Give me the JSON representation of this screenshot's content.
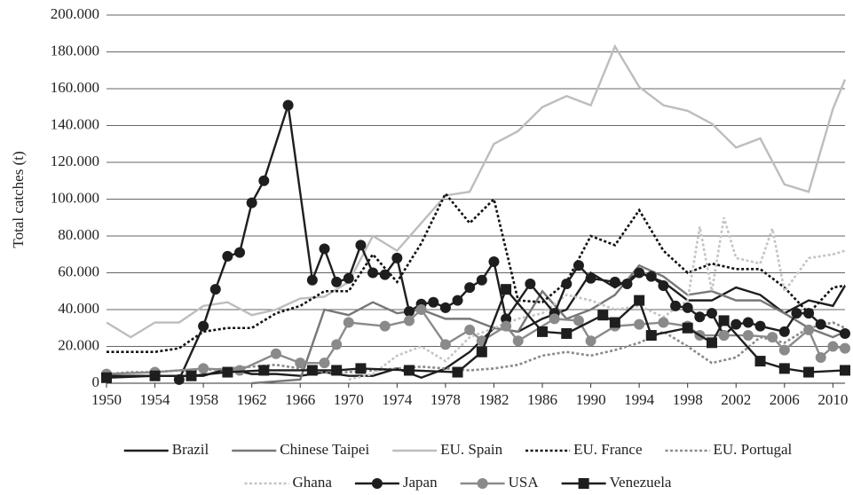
{
  "chart_data": {
    "type": "line",
    "y_label": "Total catches (t)",
    "xlim": [
      1950,
      2011
    ],
    "xticks": [
      1950,
      1954,
      1958,
      1962,
      1966,
      1970,
      1974,
      1978,
      1982,
      1986,
      1990,
      1994,
      1998,
      2002,
      2006,
      2010
    ],
    "ylim": [
      0,
      200000
    ],
    "yticks": [
      0,
      {
        "value": 20000,
        "label": "20.000"
      },
      {
        "value": 40000,
        "label": "40.000"
      },
      {
        "value": 60000,
        "label": "60.000"
      },
      {
        "value": 80000,
        "label": "80.000"
      },
      {
        "value": 100000,
        "label": "100.000"
      },
      {
        "value": 120000,
        "label": "120.000"
      },
      {
        "value": 140000,
        "label": "140.000"
      },
      {
        "value": 160000,
        "label": "160.000"
      },
      {
        "value": 180000,
        "label": "180.000"
      },
      {
        "value": 200000,
        "label": "200.000"
      }
    ],
    "grid": true,
    "series": [
      {
        "name": "Brazil",
        "color": "#1e1e1e",
        "dash": "solid",
        "marker": "none",
        "x": [
          1950,
          1952,
          1954,
          1956,
          1958,
          1960,
          1962,
          1964,
          1966,
          1968,
          1970,
          1972,
          1974,
          1976,
          1978,
          1980,
          1982,
          1984,
          1986,
          1988,
          1990,
          1992,
          1994,
          1996,
          1998,
          2000,
          2002,
          2004,
          2006,
          2008,
          2010,
          2011
        ],
        "values": [
          4000,
          4000,
          4000,
          4000,
          4000,
          8000,
          5000,
          5000,
          4000,
          6000,
          4000,
          4000,
          8000,
          3000,
          8000,
          17000,
          30000,
          28000,
          35000,
          40000,
          60000,
          52000,
          60000,
          55000,
          45000,
          45000,
          52000,
          48000,
          38000,
          45000,
          42000,
          53000
        ]
      },
      {
        "name": "Chinese Taipei",
        "color": "#777777",
        "dash": "solid",
        "marker": "none",
        "x": [
          1962,
          1964,
          1966,
          1968,
          1970,
          1972,
          1974,
          1976,
          1978,
          1980,
          1982,
          1984,
          1986,
          1988,
          1990,
          1992,
          1994,
          1996,
          1998,
          2000,
          2002,
          2004,
          2006,
          2008,
          2010,
          2011
        ],
        "values": [
          0,
          1000,
          2000,
          40000,
          37000,
          44000,
          38000,
          40000,
          35000,
          35000,
          30000,
          28000,
          50000,
          35000,
          40000,
          48000,
          64000,
          58000,
          48000,
          50000,
          45000,
          45000,
          38000,
          30000,
          25000,
          28000
        ]
      },
      {
        "name": "EU. Spain",
        "color": "#bdbdbd",
        "dash": "solid",
        "marker": "none",
        "x": [
          1950,
          1952,
          1954,
          1956,
          1958,
          1960,
          1962,
          1964,
          1966,
          1968,
          1970,
          1972,
          1974,
          1976,
          1978,
          1980,
          1982,
          1984,
          1986,
          1988,
          1990,
          1992,
          1994,
          1996,
          1998,
          2000,
          2002,
          2004,
          2006,
          2008,
          2010,
          2011
        ],
        "values": [
          33000,
          25000,
          33000,
          33000,
          42000,
          44000,
          37000,
          40000,
          46000,
          47000,
          55000,
          80000,
          72000,
          87000,
          102000,
          104000,
          130000,
          137000,
          150000,
          156000,
          151000,
          183000,
          161000,
          151000,
          148000,
          141000,
          128000,
          133000,
          108000,
          104000,
          149000,
          165000
        ]
      },
      {
        "name": "EU. France",
        "color": "#111111",
        "dash": "dot",
        "marker": "none",
        "x": [
          1950,
          1952,
          1954,
          1956,
          1958,
          1960,
          1962,
          1964,
          1966,
          1968,
          1970,
          1972,
          1974,
          1976,
          1978,
          1980,
          1982,
          1984,
          1986,
          1988,
          1990,
          1992,
          1994,
          1996,
          1998,
          2000,
          2002,
          2004,
          2006,
          2008,
          2010,
          2011
        ],
        "values": [
          17000,
          17000,
          17000,
          19000,
          28000,
          30000,
          30000,
          38000,
          42000,
          50000,
          50000,
          70000,
          55000,
          76000,
          103000,
          87000,
          100000,
          45000,
          44000,
          55000,
          80000,
          75000,
          94000,
          72000,
          60000,
          65000,
          62000,
          62000,
          52000,
          38000,
          52000,
          53000
        ]
      },
      {
        "name": "EU. Portugal",
        "color": "#8a8a8a",
        "dash": "dot",
        "marker": "none",
        "x": [
          1950,
          1952,
          1954,
          1956,
          1958,
          1960,
          1962,
          1964,
          1966,
          1968,
          1970,
          1972,
          1974,
          1976,
          1978,
          1980,
          1982,
          1984,
          1986,
          1988,
          1990,
          1992,
          1994,
          1996,
          1998,
          2000,
          2002,
          2004,
          2006,
          2008,
          2010,
          2011
        ],
        "values": [
          5000,
          6000,
          6000,
          7000,
          7000,
          8000,
          9000,
          10000,
          8000,
          6000,
          6000,
          7000,
          8000,
          9000,
          8000,
          7000,
          8000,
          10000,
          15000,
          17000,
          15000,
          18000,
          22000,
          28000,
          20000,
          11000,
          14000,
          25000,
          22000,
          30000,
          33000,
          30000
        ]
      },
      {
        "name": "Ghana",
        "color": "#c4c4c4",
        "dash": "dot",
        "marker": "none",
        "x": [
          1970,
          1972,
          1974,
          1976,
          1978,
          1980,
          1982,
          1984,
          1986,
          1988,
          1990,
          1992,
          1994,
          1996,
          1998,
          1999,
          2000,
          2001,
          2002,
          2004,
          2005,
          2006,
          2008,
          2010,
          2011
        ],
        "values": [
          2000,
          5000,
          15000,
          20000,
          12000,
          25000,
          30000,
          35000,
          38000,
          48000,
          45000,
          40000,
          42000,
          36000,
          45000,
          85000,
          50000,
          90000,
          68000,
          65000,
          84000,
          50000,
          68000,
          70000,
          72000
        ]
      },
      {
        "name": "Japan",
        "color": "#1e1e1e",
        "dash": "solid",
        "marker": "circle",
        "x": [
          1956,
          1958,
          1959,
          1960,
          1961,
          1962,
          1963,
          1965,
          1967,
          1968,
          1969,
          1970,
          1971,
          1972,
          1973,
          1974,
          1975,
          1976,
          1977,
          1978,
          1979,
          1980,
          1981,
          1982,
          1983,
          1985,
          1987,
          1988,
          1989,
          1990,
          1992,
          1993,
          1994,
          1995,
          1996,
          1997,
          1998,
          1999,
          2000,
          2001,
          2002,
          2003,
          2004,
          2006,
          2007,
          2008,
          2009,
          2011
        ],
        "values": [
          2000,
          31000,
          51000,
          69000,
          71000,
          98000,
          110000,
          151000,
          56000,
          73000,
          55000,
          57000,
          75000,
          60000,
          59000,
          68000,
          39000,
          43000,
          44000,
          41000,
          45000,
          52000,
          56000,
          66000,
          35000,
          54000,
          38000,
          54000,
          64000,
          57000,
          55000,
          54000,
          60000,
          58000,
          53000,
          42000,
          41000,
          36000,
          38000,
          26000,
          32000,
          33000,
          31000,
          28000,
          38000,
          38000,
          32000,
          27000
        ]
      },
      {
        "name": "USA",
        "color": "#8a8a8a",
        "dash": "solid",
        "marker": "circle",
        "x": [
          1950,
          1954,
          1958,
          1961,
          1964,
          1966,
          1968,
          1969,
          1970,
          1973,
          1975,
          1976,
          1978,
          1980,
          1981,
          1983,
          1984,
          1987,
          1989,
          1990,
          1992,
          1994,
          1996,
          1998,
          1999,
          2001,
          2003,
          2005,
          2006,
          2008,
          2009,
          2010,
          2011
        ],
        "values": [
          5000,
          6000,
          8000,
          7000,
          16000,
          11000,
          11000,
          21000,
          33000,
          31000,
          34000,
          40000,
          21000,
          29000,
          23000,
          31000,
          23000,
          35000,
          34000,
          23000,
          31000,
          32000,
          33000,
          31000,
          26000,
          26000,
          26000,
          25000,
          18000,
          29000,
          14000,
          20000,
          19000
        ]
      },
      {
        "name": "Venezuela",
        "color": "#1e1e1e",
        "dash": "solid",
        "marker": "square",
        "x": [
          1950,
          1954,
          1957,
          1960,
          1963,
          1967,
          1969,
          1971,
          1975,
          1979,
          1981,
          1983,
          1986,
          1988,
          1991,
          1992,
          1994,
          1995,
          1998,
          2000,
          2001,
          2004,
          2006,
          2008,
          2011
        ],
        "values": [
          3000,
          4000,
          4000,
          6000,
          7000,
          7000,
          7000,
          8000,
          7000,
          6000,
          17000,
          51000,
          28000,
          27000,
          37000,
          33000,
          45000,
          26000,
          30000,
          22000,
          34000,
          12000,
          8000,
          6000,
          7000
        ]
      }
    ]
  }
}
